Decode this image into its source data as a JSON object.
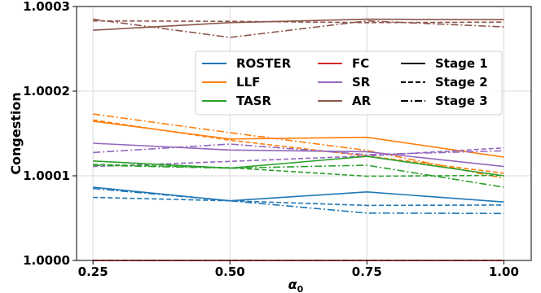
{
  "chart_data": {
    "type": "line",
    "xlabel": "α0",
    "xlabel_main": "α",
    "xlabel_sub": "0",
    "ylabel": "Congestion",
    "x": [
      0.25,
      0.5,
      0.75,
      1.0
    ],
    "x_tick_labels": [
      "0.25",
      "0.50",
      "0.75",
      "1.00"
    ],
    "xlim": [
      0.22,
      1.05
    ],
    "ylim": [
      1.0,
      1.0003
    ],
    "y_ticks": [
      1.0,
      1.0001,
      1.0002,
      1.0003
    ],
    "y_tick_labels": [
      "1.0000",
      "1.0001",
      "1.0002",
      "1.0003"
    ],
    "grid": true,
    "legend": {
      "placement": "upper-right",
      "methods": [
        {
          "name": "ROSTER",
          "color": "#1f77b4"
        },
        {
          "name": "FC",
          "color": "#d62728"
        },
        {
          "name": "LLF",
          "color": "#ff7f0e"
        },
        {
          "name": "SR",
          "color": "#9467bd"
        },
        {
          "name": "TASR",
          "color": "#2ca02c"
        },
        {
          "name": "AR",
          "color": "#8c564b"
        }
      ],
      "stages": [
        {
          "name": "Stage 1",
          "dash": "solid"
        },
        {
          "name": "Stage 2",
          "dash": "dashed"
        },
        {
          "name": "Stage 3",
          "dash": "dashdot"
        }
      ]
    },
    "series": [
      {
        "method": "ROSTER",
        "stage": "Stage 1",
        "values": [
          1.0000865,
          1.0000705,
          1.000081,
          1.000069
        ]
      },
      {
        "method": "ROSTER",
        "stage": "Stage 2",
        "values": [
          1.0000745,
          1.0000705,
          1.000065,
          1.0000655
        ]
      },
      {
        "method": "ROSTER",
        "stage": "Stage 3",
        "values": [
          1.000085,
          1.0000705,
          1.000056,
          1.0000555
        ]
      },
      {
        "method": "FC",
        "stage": "Stage 1",
        "values": [
          1.0,
          1.0,
          1.0,
          1.0
        ]
      },
      {
        "method": "FC",
        "stage": "Stage 2",
        "values": [
          1.0,
          1.0,
          1.0,
          1.0
        ]
      },
      {
        "method": "FC",
        "stage": "Stage 3",
        "values": [
          1.0,
          1.0,
          1.0,
          1.0
        ]
      },
      {
        "method": "LLF",
        "stage": "Stage 1",
        "values": [
          1.0001645,
          1.0001435,
          1.0001455,
          1.000122
        ]
      },
      {
        "method": "LLF",
        "stage": "Stage 2",
        "values": [
          1.000166,
          1.000142,
          1.0001235,
          1.000103
        ]
      },
      {
        "method": "LLF",
        "stage": "Stage 3",
        "values": [
          1.000173,
          1.000151,
          1.00013,
          1.000097
        ]
      },
      {
        "method": "SR",
        "stage": "Stage 1",
        "values": [
          1.0001385,
          1.0001305,
          1.0001285,
          1.000111
        ]
      },
      {
        "method": "SR",
        "stage": "Stage 2",
        "values": [
          1.000111,
          1.000117,
          1.0001235,
          1.000133
        ]
      },
      {
        "method": "SR",
        "stage": "Stage 3",
        "values": [
          1.0001275,
          1.0001375,
          1.000125,
          1.0001295
        ]
      },
      {
        "method": "TASR",
        "stage": "Stage 1",
        "values": [
          1.0001175,
          1.000109,
          1.000123,
          1.0001
        ]
      },
      {
        "method": "TASR",
        "stage": "Stage 2",
        "values": [
          1.0001135,
          1.0001095,
          1.0000995,
          1.0001005
        ]
      },
      {
        "method": "TASR",
        "stage": "Stage 3",
        "values": [
          1.0001125,
          1.000109,
          1.0001125,
          1.0000865
        ]
      },
      {
        "method": "AR",
        "stage": "Stage 1",
        "values": [
          1.000272,
          1.000281,
          1.000285,
          1.0002845
        ]
      },
      {
        "method": "AR",
        "stage": "Stage 2",
        "values": [
          1.000283,
          1.0002825,
          1.000281,
          1.0002815
        ]
      },
      {
        "method": "AR",
        "stage": "Stage 3",
        "values": [
          1.000285,
          1.0002635,
          1.000283,
          1.000276
        ]
      }
    ]
  }
}
